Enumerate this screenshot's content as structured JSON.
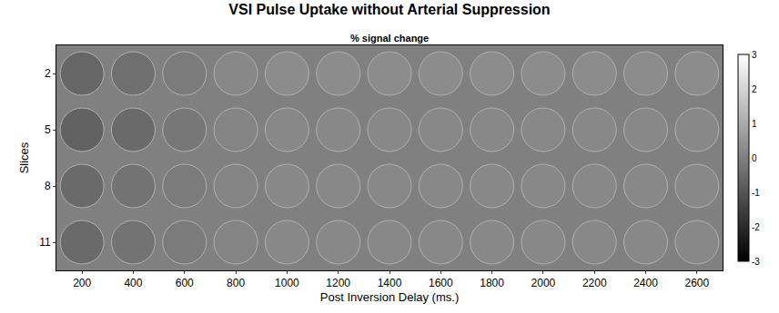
{
  "chart_data": {
    "type": "heatmap",
    "title": "VSI Pulse Uptake without Arterial Suppression",
    "subtitle": "% signal change",
    "x_label": "Post Inversion Delay (ms.)",
    "y_label": "Slices",
    "x": [
      200,
      400,
      600,
      800,
      1000,
      1200,
      1400,
      1600,
      1800,
      2000,
      2200,
      2400,
      2600
    ],
    "y": [
      2,
      5,
      8,
      11
    ],
    "xlim": [
      100,
      2700
    ],
    "xticks": [
      200,
      400,
      600,
      800,
      1000,
      1200,
      1400,
      1600,
      1800,
      2000,
      2200,
      2400,
      2600
    ],
    "ylim": [
      12.5,
      0.5
    ],
    "yticks": [
      2,
      5,
      8,
      11
    ],
    "cells": [
      [
        -0.6,
        -0.4,
        -0.1,
        0.2,
        0.3,
        0.3,
        0.3,
        0.3,
        0.3,
        0.3,
        0.3,
        0.3,
        0.3
      ],
      [
        -0.7,
        -0.5,
        -0.2,
        0.1,
        0.2,
        0.2,
        0.2,
        0.2,
        0.2,
        0.2,
        0.2,
        0.2,
        0.2
      ],
      [
        -0.5,
        -0.3,
        -0.1,
        0.1,
        0.2,
        0.2,
        0.2,
        0.2,
        0.2,
        0.2,
        0.2,
        0.2,
        0.2
      ],
      [
        -0.5,
        -0.3,
        -0.1,
        0.1,
        0.2,
        0.2,
        0.2,
        0.2,
        0.2,
        0.2,
        0.2,
        0.2,
        0.2
      ]
    ],
    "colorbar": {
      "range": [
        -3,
        3
      ],
      "ticks": [
        -3,
        -2,
        -1,
        0,
        1,
        2,
        3
      ]
    },
    "grid": false
  }
}
